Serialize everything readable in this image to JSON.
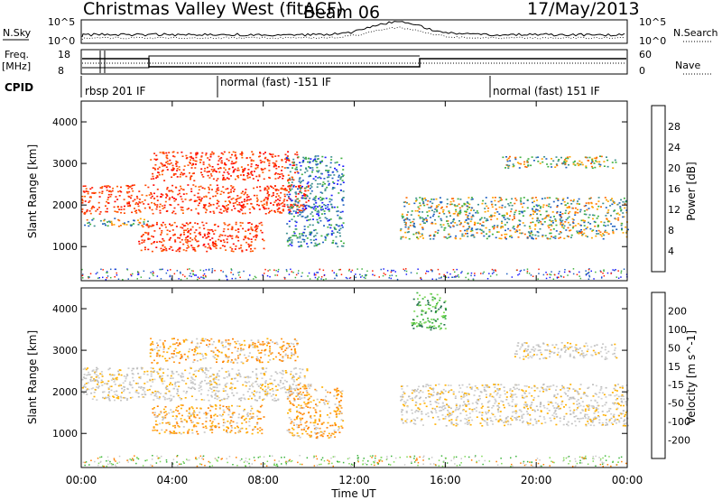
{
  "header": {
    "title": "Christmas Valley West (fitACF)",
    "beam": "Beam 06",
    "date": "17/May/2013"
  },
  "strips": {
    "nsky_label": "N.Sky",
    "nsearch_label": "N.Search",
    "noise_ticks_left": [
      "10^5",
      "10^0"
    ],
    "noise_ticks_right": [
      "10^5",
      "10^0"
    ],
    "freq_label": "Freq.",
    "freq_unit": "[MHz]",
    "freq_ticks": [
      "18",
      "8"
    ],
    "nave_label": "Nave",
    "nave_ticks": [
      "60",
      "0"
    ],
    "cpid_label": "CPID",
    "cpid_modes": [
      {
        "name": "rbsp 201 IF",
        "start_hour": 0
      },
      {
        "name": "normal (fast) -151 IF",
        "start_hour": 6
      },
      {
        "name": "normal (fast) 151 IF",
        "start_hour": 18
      }
    ]
  },
  "chart_data": [
    {
      "type": "heatmap",
      "parameter": "Power",
      "ylabel": "Slant Range [km]",
      "xlabel": "Time UT",
      "x_range_hours": [
        0,
        24
      ],
      "ylim": [
        180,
        4500
      ],
      "y_ticks": [
        "1000",
        "2000",
        "3000",
        "4000"
      ],
      "x_ticks": [
        "00:00",
        "04:00",
        "08:00",
        "12:00",
        "16:00",
        "20:00",
        "00:00"
      ],
      "colorbar": {
        "label": "Power [dB]",
        "tick_labels": [
          "4",
          "8",
          "12",
          "16",
          "20",
          "24",
          "28"
        ],
        "colors": [
          "#1a1aff",
          "#2060c0",
          "#3d8f8f",
          "#40b040",
          "#ffa500",
          "#ff6a00",
          "#ff2000",
          "#ff0000"
        ]
      },
      "echo_regions": [
        {
          "start_hour": 0.0,
          "end_hour": 10.0,
          "range_km": [
            1800,
            2500
          ],
          "level": "high"
        },
        {
          "start_hour": 0.0,
          "end_hour": 3.0,
          "range_km": [
            1500,
            1700
          ],
          "level": "medium"
        },
        {
          "start_hour": 3.0,
          "end_hour": 9.5,
          "range_km": [
            2600,
            3300
          ],
          "level": "high"
        },
        {
          "start_hour": 2.5,
          "end_hour": 8.0,
          "range_km": [
            900,
            1600
          ],
          "level": "high"
        },
        {
          "start_hour": 9.0,
          "end_hour": 11.5,
          "range_km": [
            1000,
            3200
          ],
          "level": "low"
        },
        {
          "start_hour": 14.0,
          "end_hour": 24.0,
          "range_km": [
            1200,
            2200
          ],
          "level": "medium"
        },
        {
          "start_hour": 18.5,
          "end_hour": 23.5,
          "range_km": [
            2900,
            3200
          ],
          "level": "medium"
        }
      ]
    },
    {
      "type": "heatmap",
      "parameter": "Velocity",
      "ylabel": "Slant Range [km]",
      "xlabel": "Time UT",
      "x_range_hours": [
        0,
        24
      ],
      "ylim": [
        180,
        4500
      ],
      "y_ticks": [
        "1000",
        "2000",
        "3000",
        "4000"
      ],
      "x_ticks": [
        "00:00",
        "04:00",
        "08:00",
        "12:00",
        "16:00",
        "20:00",
        "00:00"
      ],
      "colorbar": {
        "label": "Velocity [m s^-1]",
        "tick_labels": [
          "200",
          "100",
          "50",
          "15",
          "-15",
          "-50",
          "-100",
          "-200"
        ],
        "colors": [
          "#1a3cc8",
          "#1f6f4a",
          "#3cb43c",
          "#7ed957",
          "#c8c8c8",
          "#ffb000",
          "#ff8000",
          "#ff4000",
          "#ff0000"
        ]
      },
      "echo_regions": [
        {
          "start_hour": 0.0,
          "end_hour": 10.0,
          "range_km": [
            1800,
            2600
          ],
          "level": "ground"
        },
        {
          "start_hour": 3.0,
          "end_hour": 9.5,
          "range_km": [
            2700,
            3300
          ],
          "level": "negative"
        },
        {
          "start_hour": 3.0,
          "end_hour": 8.0,
          "range_km": [
            1000,
            1700
          ],
          "level": "negative"
        },
        {
          "start_hour": 9.0,
          "end_hour": 11.5,
          "range_km": [
            900,
            2200
          ],
          "level": "negative"
        },
        {
          "start_hour": 14.0,
          "end_hour": 24.0,
          "range_km": [
            1200,
            2200
          ],
          "level": "ground"
        },
        {
          "start_hour": 19.0,
          "end_hour": 23.5,
          "range_km": [
            2800,
            3200
          ],
          "level": "ground"
        },
        {
          "start_hour": 14.5,
          "end_hour": 16.0,
          "range_km": [
            3500,
            4400
          ],
          "level": "positive"
        }
      ]
    }
  ],
  "x_axis_label": "Time UT"
}
